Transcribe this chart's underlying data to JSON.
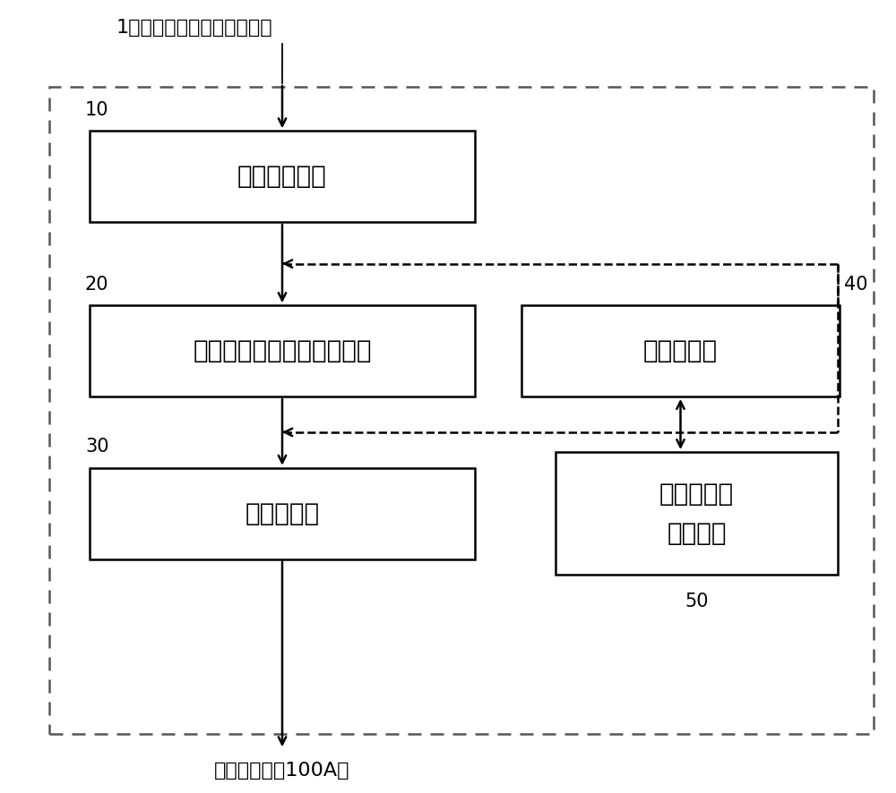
{
  "title_num": "1",
  "title_colon": "：",
  "title_text": "金属制圆线材用加工装置",
  "box10_label": "矫正用加工机",
  "box10_num": "10",
  "box20_label": "截面非圆形部形成用加工机",
  "box20_num": "20",
  "box30_label": "弯曲加工机",
  "box30_num": "30",
  "box40_label": "切断加工机",
  "box40_num": "40",
  "box50_label1": "切断加工机",
  "box50_label2": "用控制部",
  "box50_num": "50",
  "output_label": "（线材加工品100A）",
  "bg": "#ffffff",
  "box_edge": "#000000",
  "dashed_border_color": "#555555",
  "arrow_color": "#000000",
  "text_color": "#000000",
  "font_size_box": 20,
  "font_size_label": 16,
  "font_size_num": 15
}
